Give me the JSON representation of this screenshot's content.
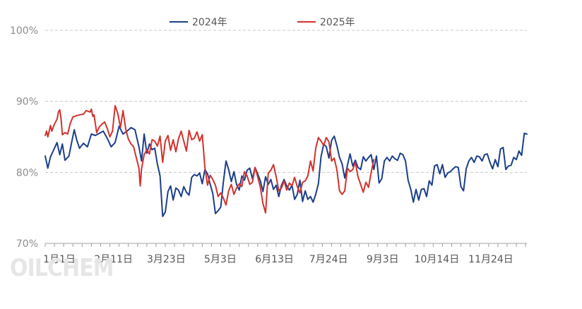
{
  "watermark": "OILCHEM",
  "chart_data": {
    "type": "line",
    "title": "",
    "xlabel": "",
    "ylabel": "",
    "ylim": [
      70,
      100
    ],
    "y_ticks": [
      70,
      80,
      90,
      100
    ],
    "y_tick_suffix": "%",
    "grid": true,
    "legend_position": "top",
    "x_ticks": [
      {
        "label": "1月1日",
        "day": 1
      },
      {
        "label": "2月11日",
        "day": 42
      },
      {
        "label": "3月23日",
        "day": 82
      },
      {
        "label": "5月3日",
        "day": 123
      },
      {
        "label": "6月13日",
        "day": 164
      },
      {
        "label": "7月24日",
        "day": 205
      },
      {
        "label": "9月3日",
        "day": 246
      },
      {
        "label": "10月14日",
        "day": 287
      },
      {
        "label": "11月24日",
        "day": 328
      }
    ],
    "series": [
      {
        "name": "2024年",
        "color": "#1b3f8b",
        "points": [
          [
            1,
            82.3
          ],
          [
            3,
            80.6
          ],
          [
            5,
            82.2
          ],
          [
            8,
            83.4
          ],
          [
            10,
            84.2
          ],
          [
            12,
            82.5
          ],
          [
            14,
            84.0
          ],
          [
            16,
            81.7
          ],
          [
            19,
            82.3
          ],
          [
            21,
            84.2
          ],
          [
            23,
            86.0
          ],
          [
            25,
            84.5
          ],
          [
            27,
            83.4
          ],
          [
            30,
            84.1
          ],
          [
            33,
            83.6
          ],
          [
            36,
            85.4
          ],
          [
            39,
            85.2
          ],
          [
            42,
            85.5
          ],
          [
            45,
            85.8
          ],
          [
            48,
            84.8
          ],
          [
            51,
            83.6
          ],
          [
            54,
            84.2
          ],
          [
            57,
            86.5
          ],
          [
            60,
            85.4
          ],
          [
            63,
            85.8
          ],
          [
            66,
            86.3
          ],
          [
            69,
            86.0
          ],
          [
            72,
            83.6
          ],
          [
            74,
            81.6
          ],
          [
            76,
            85.4
          ],
          [
            78,
            82.7
          ],
          [
            80,
            84.0
          ],
          [
            82,
            83.2
          ],
          [
            84,
            83.4
          ],
          [
            86,
            81.2
          ],
          [
            88,
            79.5
          ],
          [
            90,
            73.8
          ],
          [
            92,
            74.4
          ],
          [
            94,
            77.3
          ],
          [
            96,
            78.1
          ],
          [
            98,
            76.1
          ],
          [
            100,
            77.8
          ],
          [
            102,
            77.5
          ],
          [
            104,
            76.6
          ],
          [
            106,
            78.0
          ],
          [
            108,
            77.2
          ],
          [
            110,
            76.8
          ],
          [
            112,
            79.3
          ],
          [
            114,
            79.7
          ],
          [
            116,
            79.5
          ],
          [
            118,
            79.9
          ],
          [
            120,
            78.4
          ],
          [
            122,
            80.4
          ],
          [
            124,
            79.8
          ],
          [
            126,
            78.3
          ],
          [
            128,
            77.0
          ],
          [
            130,
            74.2
          ],
          [
            132,
            74.6
          ],
          [
            134,
            75.1
          ],
          [
            136,
            78.6
          ],
          [
            138,
            81.6
          ],
          [
            140,
            80.4
          ],
          [
            142,
            78.7
          ],
          [
            144,
            80.1
          ],
          [
            146,
            78.3
          ],
          [
            148,
            77.5
          ],
          [
            150,
            79.5
          ],
          [
            152,
            78.9
          ],
          [
            154,
            80.3
          ],
          [
            156,
            80.6
          ],
          [
            158,
            79.1
          ],
          [
            160,
            80.7
          ],
          [
            162,
            79.8
          ],
          [
            164,
            78.8
          ],
          [
            166,
            77.3
          ],
          [
            168,
            79.4
          ],
          [
            170,
            78.3
          ],
          [
            172,
            79.0
          ],
          [
            174,
            77.6
          ],
          [
            176,
            78.2
          ],
          [
            178,
            76.6
          ],
          [
            180,
            78.2
          ],
          [
            182,
            79.0
          ],
          [
            184,
            78.1
          ],
          [
            186,
            77.5
          ],
          [
            188,
            78.2
          ],
          [
            190,
            76.2
          ],
          [
            192,
            76.9
          ],
          [
            194,
            78.9
          ],
          [
            196,
            75.9
          ],
          [
            198,
            77.4
          ],
          [
            200,
            76.2
          ],
          [
            202,
            76.6
          ],
          [
            204,
            75.8
          ],
          [
            206,
            76.9
          ],
          [
            208,
            78.4
          ],
          [
            210,
            82.2
          ],
          [
            212,
            84.0
          ],
          [
            214,
            83.6
          ],
          [
            216,
            82.0
          ],
          [
            218,
            84.5
          ],
          [
            220,
            85.1
          ],
          [
            222,
            83.8
          ],
          [
            224,
            82.1
          ],
          [
            226,
            81.2
          ],
          [
            228,
            79.2
          ],
          [
            230,
            81.0
          ],
          [
            232,
            82.6
          ],
          [
            234,
            80.9
          ],
          [
            236,
            81.7
          ],
          [
            238,
            80.7
          ],
          [
            240,
            80.4
          ],
          [
            242,
            82.2
          ],
          [
            244,
            81.6
          ],
          [
            246,
            82.1
          ],
          [
            248,
            82.5
          ],
          [
            250,
            80.4
          ],
          [
            252,
            82.3
          ],
          [
            254,
            78.5
          ],
          [
            256,
            79.1
          ],
          [
            258,
            81.6
          ],
          [
            260,
            82.1
          ],
          [
            262,
            81.6
          ],
          [
            264,
            82.3
          ],
          [
            266,
            81.9
          ],
          [
            268,
            81.7
          ],
          [
            270,
            82.7
          ],
          [
            272,
            82.5
          ],
          [
            274,
            81.6
          ],
          [
            276,
            78.9
          ],
          [
            278,
            77.6
          ],
          [
            280,
            75.8
          ],
          [
            282,
            77.6
          ],
          [
            284,
            76.1
          ],
          [
            286,
            77.6
          ],
          [
            288,
            77.7
          ],
          [
            290,
            76.6
          ],
          [
            292,
            78.8
          ],
          [
            294,
            78.2
          ],
          [
            296,
            80.9
          ],
          [
            298,
            81.1
          ],
          [
            300,
            79.8
          ],
          [
            302,
            81.1
          ],
          [
            304,
            79.3
          ],
          [
            306,
            79.9
          ],
          [
            308,
            80.1
          ],
          [
            310,
            80.5
          ],
          [
            312,
            80.8
          ],
          [
            314,
            80.7
          ],
          [
            316,
            78.0
          ],
          [
            318,
            77.4
          ],
          [
            320,
            80.5
          ],
          [
            322,
            81.6
          ],
          [
            324,
            82.1
          ],
          [
            326,
            81.4
          ],
          [
            328,
            82.3
          ],
          [
            330,
            82.2
          ],
          [
            332,
            81.6
          ],
          [
            334,
            82.5
          ],
          [
            336,
            82.6
          ],
          [
            338,
            81.4
          ],
          [
            340,
            80.5
          ],
          [
            342,
            81.8
          ],
          [
            344,
            80.8
          ],
          [
            346,
            83.3
          ],
          [
            348,
            83.5
          ],
          [
            350,
            80.4
          ],
          [
            352,
            80.9
          ],
          [
            354,
            81.0
          ],
          [
            356,
            82.1
          ],
          [
            358,
            81.8
          ],
          [
            360,
            83.0
          ],
          [
            362,
            82.4
          ],
          [
            364,
            85.5
          ],
          [
            366,
            85.4
          ]
        ]
      },
      {
        "name": "2025年",
        "color": "#d2322d",
        "points": [
          [
            1,
            85.2
          ],
          [
            2,
            85.8
          ],
          [
            3,
            85.0
          ],
          [
            5,
            86.6
          ],
          [
            6,
            85.8
          ],
          [
            8,
            86.8
          ],
          [
            10,
            87.5
          ],
          [
            11,
            88.5
          ],
          [
            12,
            88.8
          ],
          [
            13,
            87.6
          ],
          [
            14,
            85.3
          ],
          [
            16,
            85.6
          ],
          [
            18,
            85.4
          ],
          [
            20,
            86.9
          ],
          [
            22,
            87.8
          ],
          [
            25,
            88.0
          ],
          [
            27,
            88.1
          ],
          [
            30,
            88.2
          ],
          [
            32,
            88.7
          ],
          [
            35,
            88.5
          ],
          [
            36,
            88.9
          ],
          [
            37,
            87.9
          ],
          [
            38,
            88.1
          ],
          [
            40,
            85.6
          ],
          [
            42,
            86.4
          ],
          [
            44,
            86.8
          ],
          [
            46,
            87.1
          ],
          [
            48,
            86.2
          ],
          [
            50,
            85.0
          ],
          [
            52,
            85.8
          ],
          [
            54,
            89.4
          ],
          [
            56,
            88.3
          ],
          [
            58,
            86.3
          ],
          [
            60,
            88.7
          ],
          [
            62,
            86.1
          ],
          [
            64,
            84.7
          ],
          [
            66,
            84.0
          ],
          [
            68,
            83.6
          ],
          [
            70,
            82.1
          ],
          [
            72,
            80.6
          ],
          [
            73,
            78.1
          ],
          [
            74,
            80.5
          ],
          [
            76,
            82.5
          ],
          [
            78,
            83.2
          ],
          [
            80,
            82.6
          ],
          [
            82,
            84.6
          ],
          [
            84,
            84.4
          ],
          [
            86,
            83.7
          ],
          [
            88,
            85.1
          ],
          [
            90,
            81.4
          ],
          [
            92,
            84.4
          ],
          [
            94,
            85.2
          ],
          [
            96,
            83.1
          ],
          [
            98,
            84.6
          ],
          [
            100,
            82.9
          ],
          [
            102,
            84.7
          ],
          [
            104,
            85.8
          ],
          [
            106,
            84.4
          ],
          [
            108,
            83.0
          ],
          [
            110,
            85.9
          ],
          [
            112,
            84.6
          ],
          [
            114,
            84.8
          ],
          [
            116,
            85.7
          ],
          [
            118,
            84.4
          ],
          [
            120,
            85.3
          ],
          [
            122,
            80.7
          ],
          [
            124,
            78.2
          ],
          [
            126,
            79.6
          ],
          [
            128,
            79.0
          ],
          [
            130,
            78.2
          ],
          [
            132,
            76.6
          ],
          [
            134,
            77.1
          ],
          [
            136,
            76.4
          ],
          [
            138,
            75.4
          ],
          [
            140,
            77.4
          ],
          [
            142,
            78.3
          ],
          [
            144,
            76.9
          ],
          [
            146,
            77.8
          ],
          [
            148,
            78.4
          ],
          [
            150,
            78.0
          ],
          [
            152,
            80.1
          ],
          [
            154,
            79.5
          ],
          [
            156,
            78.3
          ],
          [
            158,
            78.6
          ],
          [
            160,
            80.7
          ],
          [
            162,
            79.4
          ],
          [
            164,
            77.9
          ],
          [
            166,
            75.6
          ],
          [
            168,
            74.3
          ],
          [
            170,
            79.9
          ],
          [
            172,
            80.3
          ],
          [
            174,
            81.1
          ],
          [
            176,
            79.4
          ],
          [
            178,
            77.4
          ],
          [
            180,
            77.8
          ],
          [
            182,
            78.8
          ],
          [
            184,
            77.5
          ],
          [
            186,
            78.5
          ],
          [
            188,
            78.1
          ],
          [
            190,
            79.3
          ],
          [
            192,
            78.0
          ],
          [
            194,
            77.1
          ],
          [
            196,
            78.6
          ],
          [
            198,
            78.8
          ],
          [
            200,
            79.5
          ],
          [
            202,
            81.6
          ],
          [
            204,
            80.2
          ],
          [
            206,
            83.4
          ],
          [
            208,
            84.9
          ],
          [
            210,
            84.4
          ],
          [
            212,
            83.8
          ],
          [
            214,
            84.9
          ],
          [
            216,
            84.3
          ],
          [
            218,
            81.6
          ],
          [
            220,
            82.0
          ],
          [
            222,
            80.4
          ],
          [
            224,
            77.4
          ],
          [
            226,
            76.9
          ],
          [
            228,
            77.4
          ],
          [
            230,
            80.6
          ],
          [
            232,
            80.1
          ],
          [
            234,
            80.4
          ],
          [
            236,
            81.4
          ],
          [
            238,
            79.4
          ],
          [
            240,
            78.3
          ],
          [
            242,
            77.2
          ],
          [
            244,
            78.6
          ],
          [
            246,
            77.9
          ],
          [
            248,
            80.0
          ],
          [
            250,
            81.8
          ]
        ]
      }
    ]
  }
}
